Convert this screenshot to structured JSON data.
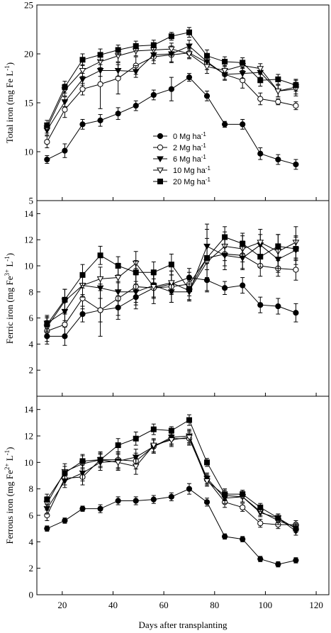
{
  "chart_data": {
    "type": "line",
    "x": [
      14,
      21,
      28,
      35,
      42,
      49,
      56,
      63,
      70,
      77,
      84,
      91,
      98,
      105,
      112
    ],
    "xlabel": "Days after transplanting",
    "xlim": [
      10,
      125
    ],
    "xticks": [
      20,
      40,
      60,
      80,
      100,
      120
    ],
    "legend": {
      "placement": "lower-center (top panel)",
      "entries": [
        "0 Mg ha",
        "2 Mg ha",
        "6 Mg ha",
        "10 Mg ha",
        "20 Mg ha"
      ],
      "superscript": "-1"
    },
    "series_styles": [
      {
        "marker": "circle",
        "fill": "#000000"
      },
      {
        "marker": "circle",
        "fill": "#ffffff"
      },
      {
        "marker": "triangle-down",
        "fill": "#000000"
      },
      {
        "marker": "triangle-down",
        "fill": "#ffffff"
      },
      {
        "marker": "square",
        "fill": "#000000"
      }
    ],
    "panels": [
      {
        "ylabel_main": "Total iron (mg Fe L",
        "ylabel_sup": "-1",
        "ylabel_tail": ")",
        "ylim": [
          5,
          25
        ],
        "yticks": [
          5,
          10,
          15,
          20,
          25
        ],
        "series": [
          {
            "values": [
              9.2,
              10.1,
              12.8,
              13.2,
              13.9,
              14.7,
              15.8,
              16.4,
              17.6,
              15.7,
              12.8,
              12.8,
              9.8,
              9.2,
              8.7
            ],
            "err": [
              0.4,
              0.7,
              0.5,
              0.6,
              0.6,
              0.5,
              0.5,
              1.2,
              0.4,
              0.5,
              0.3,
              0.5,
              0.6,
              0.5,
              0.5
            ]
          },
          {
            "values": [
              11.0,
              14.3,
              16.4,
              16.9,
              17.5,
              18.8,
              19.7,
              19.9,
              20.1,
              19.1,
              17.9,
              17.3,
              15.4,
              15.1,
              14.7
            ],
            "err": [
              0.6,
              0.8,
              0.6,
              2.5,
              1.6,
              0.9,
              0.7,
              0.8,
              0.5,
              0.7,
              0.6,
              0.8,
              0.6,
              0.3,
              0.4
            ]
          },
          {
            "values": [
              12.2,
              15.1,
              17.4,
              18.3,
              18.3,
              18.2,
              19.9,
              20.0,
              20.8,
              19.2,
              17.9,
              18.0,
              18.1,
              16.2,
              16.6
            ],
            "err": [
              0.5,
              0.5,
              0.6,
              0.6,
              0.6,
              0.6,
              0.6,
              0.8,
              0.6,
              0.8,
              0.5,
              0.5,
              0.5,
              0.6,
              0.7
            ]
          },
          {
            "values": [
              12.4,
              16.3,
              18.3,
              19.2,
              19.8,
              20.3,
              20.4,
              20.5,
              20.0,
              18.7,
              18.3,
              18.8,
              18.5,
              16.2,
              16.4
            ],
            "err": [
              0.5,
              0.6,
              0.6,
              0.6,
              0.6,
              0.5,
              0.5,
              0.6,
              0.5,
              0.7,
              0.5,
              0.5,
              0.5,
              0.6,
              0.7
            ]
          },
          {
            "values": [
              12.7,
              16.6,
              19.4,
              19.9,
              20.4,
              20.8,
              20.9,
              21.8,
              22.2,
              19.8,
              19.2,
              19.1,
              17.3,
              17.4,
              16.8
            ],
            "err": [
              0.5,
              0.6,
              0.6,
              0.6,
              0.5,
              0.5,
              0.5,
              0.4,
              0.5,
              0.6,
              0.5,
              0.5,
              0.6,
              0.5,
              0.6
            ]
          }
        ]
      },
      {
        "ylabel_main": "Ferric iron (mg Fe",
        "ylabel_sup": "3+",
        "ylabel_tail": " L",
        "ylabel_sup2": "-1",
        "ylabel_end": ")",
        "ylim": [
          0,
          15
        ],
        "yticks": [
          2,
          4,
          6,
          8,
          10,
          12,
          14
        ],
        "series": [
          {
            "values": [
              4.6,
              4.6,
              6.3,
              6.6,
              6.8,
              7.6,
              8.3,
              8.6,
              9.1,
              8.9,
              8.3,
              8.5,
              7.0,
              6.9,
              6.4
            ],
            "err": [
              0.6,
              0.7,
              0.6,
              0.9,
              0.9,
              0.9,
              0.7,
              0.7,
              0.7,
              0.8,
              0.5,
              0.6,
              0.6,
              0.6,
              0.7
            ]
          },
          {
            "values": [
              5.0,
              5.5,
              7.5,
              6.6,
              7.5,
              8.4,
              8.3,
              8.4,
              8.6,
              10.6,
              10.9,
              10.8,
              10.0,
              9.8,
              9.7
            ],
            "err": [
              0.8,
              0.8,
              0.8,
              2.0,
              1.3,
              1.4,
              1.2,
              1.2,
              0.9,
              2.6,
              1.2,
              1.1,
              0.8,
              0.6,
              0.8
            ]
          },
          {
            "values": [
              5.6,
              6.5,
              8.5,
              8.3,
              8.0,
              8.0,
              8.5,
              8.0,
              8.0,
              11.5,
              10.8,
              10.6,
              11.6,
              10.5,
              11.2
            ],
            "err": [
              0.6,
              0.7,
              0.7,
              0.8,
              0.7,
              0.8,
              0.9,
              0.8,
              0.6,
              1.3,
              0.8,
              0.8,
              0.8,
              1.0,
              1.1
            ]
          },
          {
            "values": [
              5.3,
              7.3,
              8.5,
              9.0,
              9.1,
              10.2,
              8.4,
              8.7,
              8.1,
              10.3,
              11.5,
              11.3,
              11.8,
              11.1,
              11.8
            ],
            "err": [
              0.7,
              0.9,
              0.9,
              0.9,
              1.1,
              0.9,
              0.9,
              0.9,
              0.8,
              1.3,
              1.1,
              1.0,
              1.0,
              1.3,
              1.2
            ]
          },
          {
            "values": [
              5.5,
              7.4,
              9.3,
              10.8,
              10.0,
              9.5,
              9.5,
              10.1,
              8.2,
              10.6,
              12.2,
              11.7,
              10.7,
              11.5,
              11.3
            ],
            "err": [
              0.6,
              0.8,
              0.8,
              0.7,
              0.7,
              0.9,
              0.8,
              0.8,
              0.8,
              1.5,
              0.8,
              0.8,
              0.8,
              0.9,
              0.9
            ]
          }
        ]
      },
      {
        "ylabel_main": "Ferrous iron (mg Fe",
        "ylabel_sup": "2+",
        "ylabel_tail": " L",
        "ylabel_sup2": "-1",
        "ylabel_end": ")",
        "ylim": [
          0,
          15
        ],
        "yticks": [
          0,
          2,
          4,
          6,
          8,
          10,
          12,
          14
        ],
        "series": [
          {
            "values": [
              5.0,
              5.6,
              6.5,
              6.5,
              7.1,
              7.1,
              7.2,
              7.4,
              8.0,
              7.0,
              4.4,
              4.2,
              2.7,
              2.3,
              2.6
            ],
            "err": [
              0.2,
              0.2,
              0.2,
              0.3,
              0.3,
              0.3,
              0.3,
              0.3,
              0.4,
              0.3,
              0.2,
              0.2,
              0.2,
              0.2,
              0.2
            ]
          },
          {
            "values": [
              6.0,
              8.8,
              8.9,
              10.2,
              10.2,
              10.1,
              11.2,
              11.8,
              11.8,
              8.7,
              7.0,
              6.6,
              5.4,
              5.3,
              5.3
            ],
            "err": [
              0.4,
              0.5,
              0.6,
              0.5,
              0.6,
              0.6,
              0.5,
              0.5,
              0.5,
              0.4,
              0.4,
              0.3,
              0.3,
              0.3,
              0.3
            ]
          },
          {
            "values": [
              6.5,
              8.6,
              9.2,
              10.0,
              10.1,
              10.4,
              11.2,
              11.9,
              12.0,
              8.8,
              7.3,
              7.4,
              6.2,
              5.8,
              4.8
            ],
            "err": [
              0.4,
              0.5,
              0.6,
              0.6,
              0.6,
              0.6,
              0.5,
              0.5,
              0.5,
              0.4,
              0.4,
              0.4,
              0.3,
              0.3,
              0.3
            ]
          },
          {
            "values": [
              6.9,
              9.3,
              9.9,
              10.2,
              10.0,
              9.7,
              11.3,
              11.7,
              11.9,
              8.6,
              7.5,
              7.4,
              6.3,
              5.6,
              5.1
            ],
            "err": [
              0.5,
              0.6,
              0.6,
              0.6,
              0.6,
              0.6,
              0.5,
              0.5,
              0.5,
              0.4,
              0.4,
              0.4,
              0.3,
              0.3,
              0.3
            ]
          },
          {
            "values": [
              7.2,
              9.2,
              10.1,
              10.2,
              11.3,
              11.8,
              12.5,
              12.4,
              13.2,
              10.0,
              7.6,
              7.6,
              6.6,
              5.8,
              5.0
            ],
            "err": [
              0.4,
              0.5,
              0.5,
              0.5,
              0.5,
              0.5,
              0.4,
              0.3,
              0.4,
              0.3,
              0.4,
              0.3,
              0.3,
              0.3,
              0.3
            ]
          }
        ]
      }
    ]
  }
}
